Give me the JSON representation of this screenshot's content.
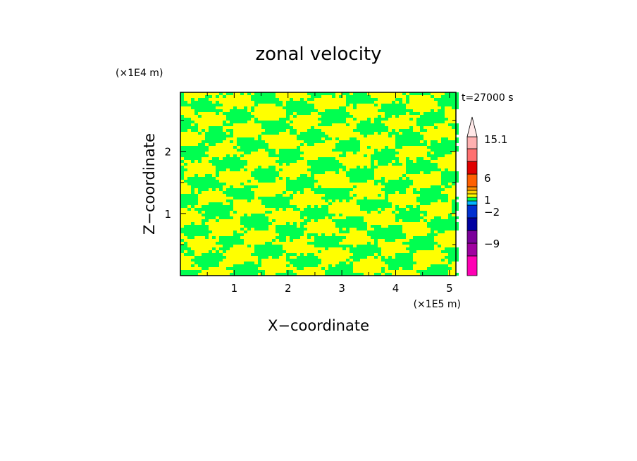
{
  "chart_data": {
    "type": "heatmap",
    "title": "zonal velocity",
    "xlabel": "X−coordinate",
    "ylabel": "Z−coordinate",
    "x_unit": "(×1E5 m)",
    "y_unit": "(×1E4 m)",
    "time_label": "t=27000 s",
    "xlim": [
      0,
      5.12
    ],
    "ylim": [
      0,
      2.95
    ],
    "x_ticks": [
      1,
      2,
      3,
      4,
      5
    ],
    "x_tick_labels": [
      "1",
      "2",
      "3",
      "4",
      "5"
    ],
    "y_ticks": [
      1,
      2
    ],
    "y_tick_labels": [
      "1",
      "2"
    ],
    "field_colors": {
      "positive_small": "#ffff00",
      "negative_small": "#00ff50"
    },
    "colorbar": {
      "levels": [
        {
          "color": "#ff00b4"
        },
        {
          "color": "#a000a0"
        },
        {
          "color": "#7a009a"
        },
        {
          "color": "#0000a0"
        },
        {
          "color": "#0030d0"
        },
        {
          "color": "#00b4ff"
        },
        {
          "color": "#00ff50"
        },
        {
          "color": "#ffff00"
        },
        {
          "color": "#ffd000"
        },
        {
          "color": "#ff9000"
        },
        {
          "color": "#ff6000"
        },
        {
          "color": "#e00000"
        },
        {
          "color": "#ff7070"
        },
        {
          "color": "#ffb0b0"
        }
      ],
      "labels": [
        "15.1",
        "6",
        "1",
        "−2",
        "−9"
      ],
      "extend_top": true
    }
  }
}
